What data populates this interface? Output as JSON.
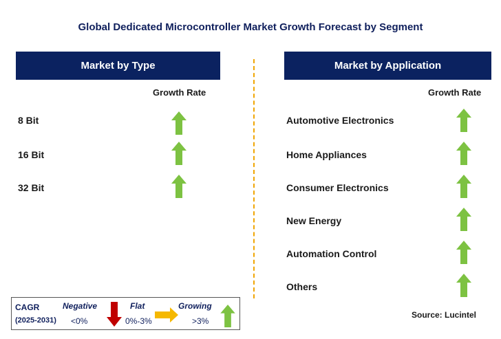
{
  "title": "Global Dedicated Microcontroller Market Growth Forecast by Segment",
  "left_panel": {
    "header": "Market by Type",
    "column_label": "Growth Rate",
    "rows": [
      {
        "label": "8 Bit",
        "trend": "growing"
      },
      {
        "label": "16 Bit",
        "trend": "growing"
      },
      {
        "label": "32 Bit",
        "trend": "growing"
      }
    ]
  },
  "right_panel": {
    "header": "Market by Application",
    "column_label": "Growth Rate",
    "rows": [
      {
        "label": "Automotive Electronics",
        "trend": "growing"
      },
      {
        "label": "Home Appliances",
        "trend": "growing"
      },
      {
        "label": "Consumer Electronics",
        "trend": "growing"
      },
      {
        "label": "New Energy",
        "trend": "growing"
      },
      {
        "label": "Automation Control",
        "trend": "growing"
      },
      {
        "label": "Others",
        "trend": "growing"
      }
    ]
  },
  "legend": {
    "cagr_label": "CAGR",
    "period": "(2025-2031)",
    "negative_label": "Negative",
    "negative_range": "<0%",
    "flat_label": "Flat",
    "flat_range": "0%-3%",
    "growing_label": "Growing",
    "growing_range": ">3%"
  },
  "source": "Source: Lucintel",
  "colors": {
    "header_bg": "#0b2260",
    "growing_arrow": "#7dc242",
    "negative_arrow": "#c00000",
    "flat_arrow": "#f5b800",
    "divider": "#f0a500"
  }
}
